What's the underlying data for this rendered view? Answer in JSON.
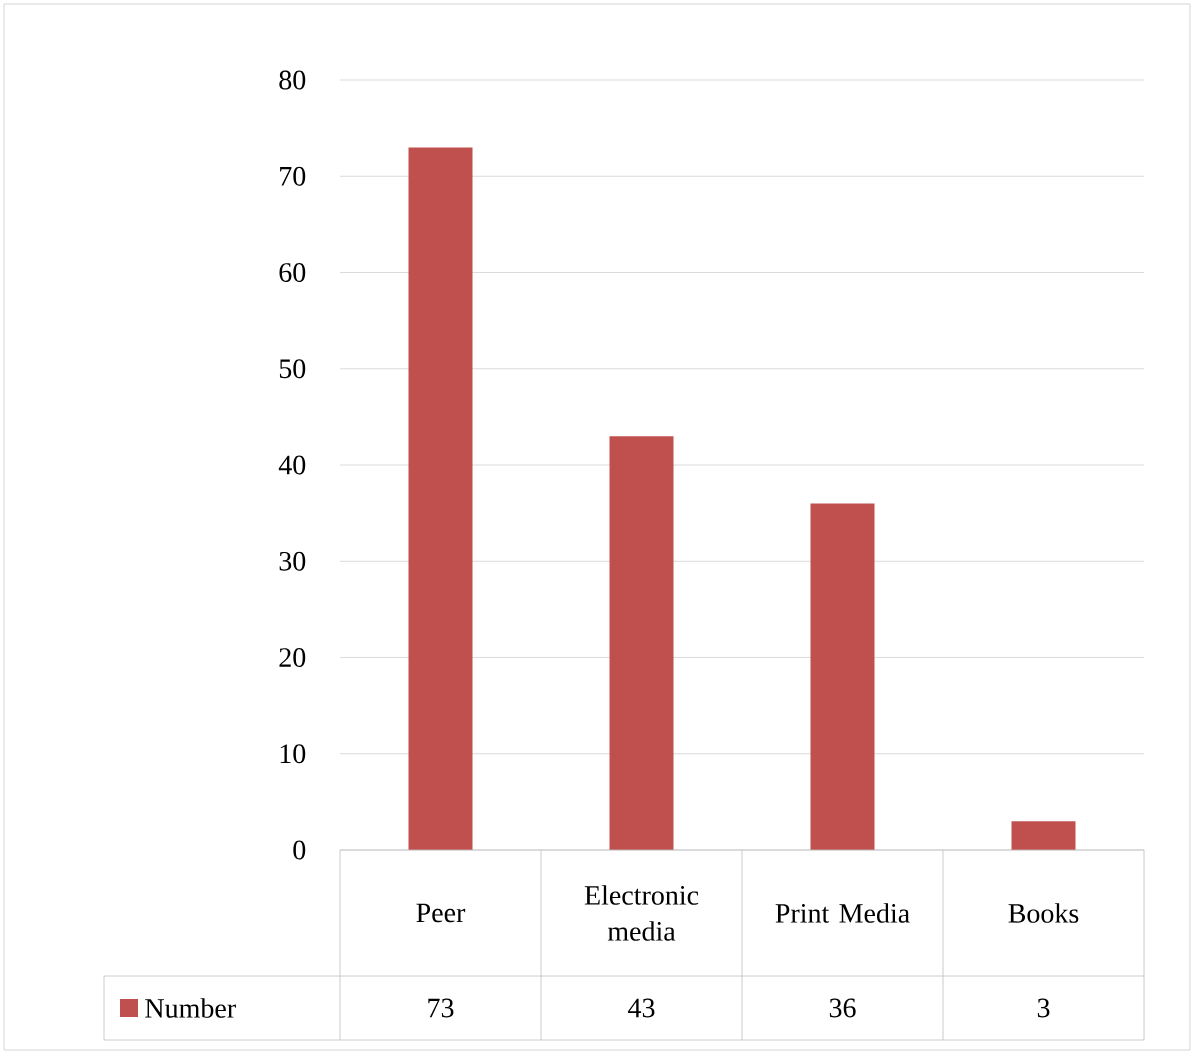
{
  "chart_data": {
    "type": "bar",
    "categories": [
      "Peer",
      "Electronic media",
      "Print Media",
      "Books"
    ],
    "series": [
      {
        "name": "Number",
        "color": "#c0504d",
        "values": [
          73,
          43,
          36,
          3
        ]
      }
    ],
    "ylim": [
      0,
      80
    ],
    "yticks": [
      0,
      10,
      20,
      30,
      40,
      50,
      60,
      70,
      80
    ],
    "grid": "y",
    "legend": "bottom",
    "data_labels": true
  }
}
